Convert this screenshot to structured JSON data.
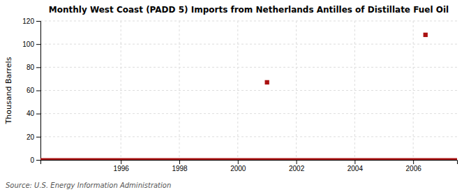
{
  "chart_data": {
    "type": "scatter",
    "title": "Monthly West Coast (PADD 5) Imports from Netherlands Antilles of Distillate Fuel Oil",
    "y_label": "Thousand Barrels",
    "source": "Source: U.S. Energy Information Administration",
    "x": [
      2001.0,
      2006.42
    ],
    "values": [
      67,
      108
    ],
    "baseline": 0,
    "color": "#aa1111",
    "marker": "square",
    "xlim": [
      1993.25,
      2007.5
    ],
    "xticks": [
      1996,
      1998,
      2000,
      2002,
      2004,
      2006
    ],
    "ylim": [
      0,
      120
    ],
    "yticks": [
      0,
      20,
      40,
      60,
      80,
      100,
      120
    ],
    "grid": true
  }
}
